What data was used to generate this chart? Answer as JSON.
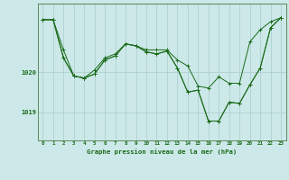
{
  "background_color": "#cce8e8",
  "grid_color": "#aacccc",
  "line_color": "#1a6b1a",
  "title": "Graphe pression niveau de la mer (hPa)",
  "hours": [
    0,
    1,
    2,
    3,
    4,
    5,
    6,
    7,
    8,
    9,
    10,
    11,
    12,
    13,
    14,
    15,
    16,
    17,
    18,
    19,
    20,
    21,
    22,
    23
  ],
  "yticks": [
    1019,
    1020
  ],
  "ylim": [
    1018.3,
    1021.7
  ],
  "series1": [
    1021.3,
    1021.3,
    1020.55,
    1019.9,
    1019.85,
    1020.05,
    1020.35,
    1020.45,
    1020.7,
    1020.65,
    1020.55,
    1020.55,
    1020.55,
    1020.3,
    1020.15,
    1019.65,
    1019.6,
    1019.88,
    1019.72,
    1019.72,
    1020.75,
    1021.05,
    1021.25,
    1021.35
  ],
  "series2": [
    1021.3,
    1021.3,
    1020.35,
    1019.9,
    1019.85,
    1019.95,
    1020.3,
    1020.4,
    1020.7,
    1020.65,
    1020.5,
    1020.45,
    1020.52,
    1020.1,
    1019.5,
    1019.55,
    1018.78,
    1018.78,
    1019.25,
    1019.22,
    1019.68,
    1020.1,
    1021.1,
    1021.35
  ],
  "series3": [
    1021.3,
    1021.3,
    1020.35,
    1019.9,
    1019.85,
    1019.95,
    1020.3,
    1020.4,
    1020.7,
    1020.65,
    1020.5,
    1020.45,
    1020.52,
    1020.1,
    1019.5,
    1019.55,
    1018.78,
    1018.78,
    1019.25,
    1019.22,
    1019.68,
    1020.1,
    1021.1,
    1021.35
  ],
  "figsize": [
    3.2,
    2.0
  ],
  "dpi": 100
}
